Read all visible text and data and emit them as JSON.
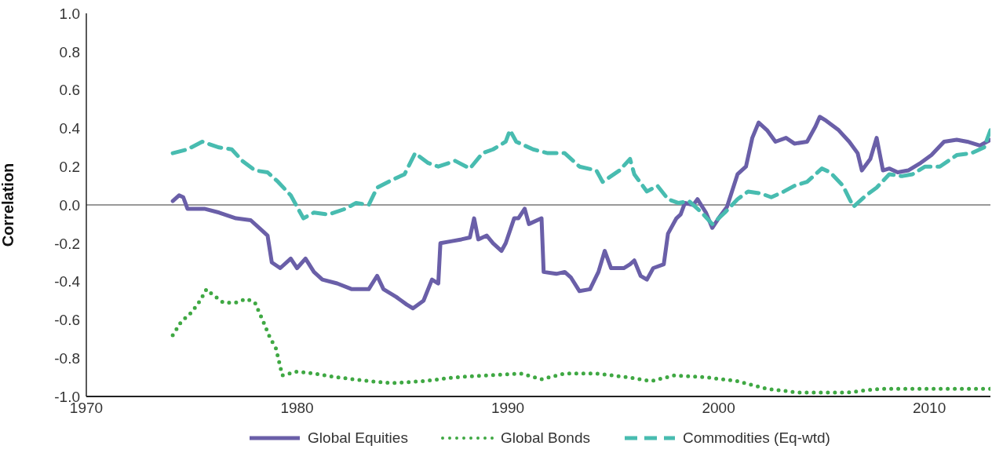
{
  "chart_data": {
    "type": "line",
    "ylabel": "Correlation",
    "xlim": [
      1970,
      2012.9
    ],
    "xticks": [
      1970,
      1980,
      1990,
      2000,
      2010
    ],
    "ylim": [
      -1,
      1
    ],
    "yticks": [
      {
        "value": -1,
        "label": "-1.0"
      },
      -0.8,
      -0.6,
      -0.4,
      -0.2,
      {
        "value": 0,
        "label": "0.0"
      },
      0.2,
      0.4,
      0.6,
      0.8,
      {
        "value": 1,
        "label": "1.0"
      }
    ],
    "legend": "bottom",
    "marker": "none",
    "ref_lines": [
      {
        "axis": "y",
        "value": 0,
        "color": "#999999"
      }
    ],
    "series": [
      {
        "name": "Global Equities",
        "color": "#6a5fa8",
        "line_style": "solid",
        "x": [
          1974.1,
          1974.4,
          1974.6,
          1974.8,
          1975.6,
          1976.3,
          1977.1,
          1977.8,
          1978.4,
          1978.6,
          1978.8,
          1979.2,
          1979.7,
          1980.0,
          1980.4,
          1980.8,
          1981.2,
          1981.9,
          1982.6,
          1983.4,
          1983.8,
          1984.1,
          1984.7,
          1985.2,
          1985.5,
          1986.0,
          1986.4,
          1986.7,
          1986.8,
          1987.3,
          1987.8,
          1988.2,
          1988.4,
          1988.6,
          1989.0,
          1989.3,
          1989.7,
          1989.9,
          1990.3,
          1990.5,
          1990.8,
          1991.0,
          1991.6,
          1991.7,
          1992.3,
          1992.7,
          1993.0,
          1993.4,
          1993.9,
          1994.3,
          1994.6,
          1994.9,
          1995.5,
          1995.8,
          1996.0,
          1996.3,
          1996.6,
          1996.9,
          1997.4,
          1997.6,
          1998.0,
          1998.2,
          1998.4,
          1998.8,
          1999.0,
          1999.4,
          1999.7,
          2000.0,
          2000.4,
          2000.9,
          2001.3,
          2001.6,
          2001.9,
          2002.3,
          2002.7,
          2003.2,
          2003.6,
          2004.2,
          2004.6,
          2004.8,
          2005.1,
          2005.7,
          2006.2,
          2006.6,
          2006.8,
          2007.2,
          2007.5,
          2007.8,
          2008.1,
          2008.5,
          2009.0,
          2009.6,
          2010.1,
          2010.7,
          2011.3,
          2011.8,
          2012.4,
          2012.9
        ],
        "values": [
          0.02,
          0.05,
          0.04,
          -0.02,
          -0.02,
          -0.04,
          -0.07,
          -0.08,
          -0.14,
          -0.16,
          -0.3,
          -0.33,
          -0.28,
          -0.33,
          -0.28,
          -0.35,
          -0.39,
          -0.41,
          -0.44,
          -0.44,
          -0.37,
          -0.44,
          -0.48,
          -0.52,
          -0.54,
          -0.5,
          -0.39,
          -0.41,
          -0.2,
          -0.19,
          -0.18,
          -0.17,
          -0.07,
          -0.18,
          -0.16,
          -0.2,
          -0.24,
          -0.2,
          -0.07,
          -0.07,
          -0.02,
          -0.1,
          -0.07,
          -0.35,
          -0.36,
          -0.35,
          -0.38,
          -0.45,
          -0.44,
          -0.35,
          -0.24,
          -0.33,
          -0.33,
          -0.31,
          -0.29,
          -0.37,
          -0.39,
          -0.33,
          -0.31,
          -0.15,
          -0.07,
          -0.05,
          0.01,
          0.0,
          0.03,
          -0.04,
          -0.12,
          -0.07,
          -0.01,
          0.16,
          0.2,
          0.35,
          0.43,
          0.39,
          0.33,
          0.35,
          0.32,
          0.33,
          0.41,
          0.46,
          0.44,
          0.39,
          0.33,
          0.27,
          0.18,
          0.24,
          0.35,
          0.18,
          0.19,
          0.17,
          0.18,
          0.22,
          0.26,
          0.33,
          0.34,
          0.33,
          0.31,
          0.34
        ]
      },
      {
        "name": "Global Bonds",
        "color": "#3fa843",
        "line_style": "dotted",
        "x": [
          1974.1,
          1974.5,
          1975.0,
          1975.4,
          1975.7,
          1975.9,
          1976.5,
          1977.1,
          1977.6,
          1978.0,
          1978.4,
          1978.7,
          1979.0,
          1979.3,
          1980.0,
          1980.8,
          1981.9,
          1983.4,
          1984.5,
          1986.0,
          1987.5,
          1989.0,
          1990.6,
          1991.6,
          1992.7,
          1994.2,
          1995.7,
          1996.8,
          1997.9,
          1999.4,
          2000.9,
          2002.3,
          2003.8,
          2004.9,
          2006.1,
          2006.8,
          2007.7,
          2009.0,
          2010.5,
          2012.0,
          2012.9
        ],
        "values": [
          -0.68,
          -0.61,
          -0.56,
          -0.5,
          -0.44,
          -0.46,
          -0.51,
          -0.51,
          -0.49,
          -0.51,
          -0.61,
          -0.69,
          -0.75,
          -0.89,
          -0.87,
          -0.88,
          -0.9,
          -0.92,
          -0.93,
          -0.92,
          -0.9,
          -0.89,
          -0.88,
          -0.91,
          -0.88,
          -0.88,
          -0.9,
          -0.92,
          -0.89,
          -0.9,
          -0.92,
          -0.96,
          -0.98,
          -0.98,
          -0.98,
          -0.97,
          -0.96,
          -0.96,
          -0.96,
          -0.96,
          -0.96
        ]
      },
      {
        "name": "Commodities (Eq-wtd)",
        "color": "#48bcb0",
        "line_style": "dashed",
        "x": [
          1974.1,
          1974.8,
          1975.5,
          1976.3,
          1976.9,
          1977.4,
          1978.0,
          1978.6,
          1979.1,
          1979.7,
          1980.3,
          1980.8,
          1981.5,
          1982.3,
          1982.8,
          1983.4,
          1983.8,
          1984.5,
          1985.1,
          1985.6,
          1986.2,
          1986.7,
          1987.5,
          1988.2,
          1988.8,
          1989.3,
          1989.9,
          1990.1,
          1990.4,
          1991.2,
          1991.9,
          1992.7,
          1993.4,
          1994.2,
          1994.5,
          1995.3,
          1995.8,
          1996.0,
          1996.6,
          1997.1,
          1997.6,
          1998.1,
          1998.6,
          1999.2,
          1999.7,
          2000.3,
          2000.9,
          2001.4,
          2002.0,
          2002.5,
          2003.1,
          2003.6,
          2004.2,
          2004.9,
          2005.3,
          2005.9,
          2006.4,
          2007.0,
          2007.5,
          2008.1,
          2008.7,
          2009.2,
          2009.8,
          2010.5,
          2011.3,
          2012.0,
          2012.6,
          2012.9
        ],
        "values": [
          0.27,
          0.29,
          0.33,
          0.3,
          0.29,
          0.23,
          0.18,
          0.17,
          0.12,
          0.05,
          -0.07,
          -0.04,
          -0.05,
          -0.02,
          0.01,
          0.0,
          0.09,
          0.13,
          0.16,
          0.27,
          0.22,
          0.2,
          0.23,
          0.19,
          0.27,
          0.29,
          0.33,
          0.39,
          0.33,
          0.29,
          0.27,
          0.27,
          0.2,
          0.18,
          0.12,
          0.18,
          0.24,
          0.16,
          0.07,
          0.1,
          0.03,
          0.01,
          0.02,
          -0.04,
          -0.1,
          -0.04,
          0.03,
          0.07,
          0.06,
          0.04,
          0.07,
          0.1,
          0.12,
          0.19,
          0.17,
          0.1,
          -0.01,
          0.05,
          0.09,
          0.16,
          0.15,
          0.16,
          0.2,
          0.2,
          0.26,
          0.27,
          0.3,
          0.39
        ]
      }
    ]
  }
}
